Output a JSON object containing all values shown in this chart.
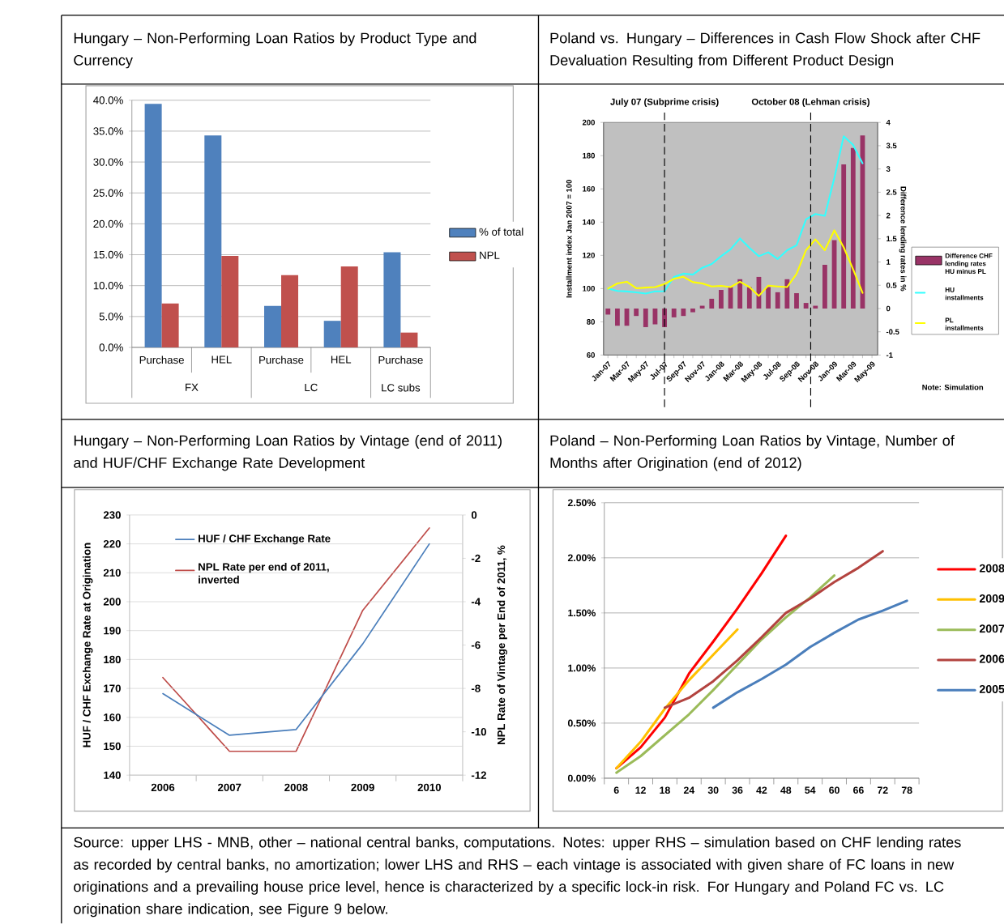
{
  "chart_data": [
    {
      "type": "bar",
      "title": "Hungary – Non-Performing Loan Ratios by Product Type and Currency",
      "categories": [
        "Purchase",
        "HEL",
        "Purchase",
        "HEL",
        "Purchase"
      ],
      "annotations": [
        "FX",
        "LC",
        "LC subs"
      ],
      "series": [
        {
          "name": "% of total",
          "color": "#4f81bd",
          "values": [
            39.4,
            34.3,
            6.7,
            4.3,
            15.4
          ]
        },
        {
          "name": "NPL",
          "color": "#c0504d",
          "values": [
            7.1,
            14.8,
            11.7,
            13.1,
            2.4
          ]
        }
      ],
      "ylim": [
        0,
        40
      ],
      "yticks": [
        {
          "value": 0,
          "label": "0.0%"
        },
        {
          "value": 5,
          "label": "5.0%"
        },
        {
          "value": 10,
          "label": "10.0%"
        },
        {
          "value": 15,
          "label": "15.0%"
        },
        {
          "value": 20,
          "label": "20.0%"
        },
        {
          "value": 25,
          "label": "25.0%"
        },
        {
          "value": 30,
          "label": "30.0%"
        },
        {
          "value": 35,
          "label": "35.0%"
        },
        {
          "value": 40,
          "label": "40.0%"
        }
      ],
      "grid": "y",
      "legend": "right"
    },
    {
      "type": "bar",
      "title": "Poland vs. Hungary – Differences in Cash Flow Shock after CHF Devaluation Resulting from Different Product Design",
      "x": [
        "2007-01",
        "2007-02",
        "2007-03",
        "2007-04",
        "2007-05",
        "2007-06",
        "2007-07",
        "2007-08",
        "2007-09",
        "2007-10",
        "2007-11",
        "2007-12",
        "2008-01",
        "2008-02",
        "2008-03",
        "2008-04",
        "2008-05",
        "2008-06",
        "2008-07",
        "2008-08",
        "2008-09",
        "2008-10",
        "2008-11",
        "2008-12",
        "2009-01",
        "2009-02",
        "2009-03",
        "2009-04"
      ],
      "series": [
        {
          "name": "Difference CHF lending rates HU minus PL",
          "type": "bar",
          "axis": "y2",
          "color": "#993366",
          "values": [
            -0.13,
            -0.37,
            -0.37,
            -0.16,
            -0.4,
            -0.34,
            -0.4,
            -0.19,
            -0.16,
            -0.08,
            0.06,
            0.21,
            0.4,
            0.46,
            0.63,
            0.46,
            0.68,
            0.46,
            0.35,
            0.63,
            0.33,
            0.12,
            0.06,
            0.94,
            1.47,
            3.1,
            3.45,
            3.72
          ]
        },
        {
          "name": "HU installments",
          "type": "line",
          "color": "#33ffff",
          "values": [
            100,
            98.6,
            98.3,
            97.7,
            97,
            98.3,
            98.5,
            107,
            109,
            108.4,
            112.5,
            114.8,
            119.5,
            123.6,
            130.2,
            124.5,
            119.5,
            121.8,
            117.8,
            123.1,
            126.1,
            141.7,
            144.9,
            143.8,
            166.5,
            191.7,
            186.4,
            175.4
          ]
        },
        {
          "name": "PL installments",
          "type": "line",
          "color": "#ffff00",
          "values": [
            100,
            103.1,
            104.1,
            100.2,
            100.6,
            100.9,
            102.7,
            105.9,
            107.1,
            103.9,
            103.1,
            101.3,
            101.6,
            100.9,
            104.1,
            100.9,
            95.6,
            101.8,
            101.3,
            100.9,
            108.9,
            123.1,
            129.6,
            123.1,
            135.1,
            124.8,
            111.6,
            97.4
          ]
        }
      ],
      "xlim": [
        "2006-12-17",
        "2009-05-19"
      ],
      "xticks": [
        {
          "value": "2007-01",
          "label": "Jan-07"
        },
        {
          "value": "2007-02",
          "label": null
        },
        {
          "value": "2007-03",
          "label": "Mar-07"
        },
        {
          "value": "2007-04",
          "label": null
        },
        {
          "value": "2007-05",
          "label": "May-07"
        },
        {
          "value": "2007-06",
          "label": null
        },
        {
          "value": "2007-07",
          "label": "Jul-07"
        },
        {
          "value": "2007-08",
          "label": null
        },
        {
          "value": "2007-09",
          "label": "Sep-07"
        },
        {
          "value": "2007-10",
          "label": null
        },
        {
          "value": "2007-11",
          "label": "Nov-07"
        },
        {
          "value": "2007-12",
          "label": null
        },
        {
          "value": "2008-01",
          "label": "Jan-08"
        },
        {
          "value": "2008-02",
          "label": null
        },
        {
          "value": "2008-03",
          "label": "Mar-08"
        },
        {
          "value": "2008-04",
          "label": null
        },
        {
          "value": "2008-05",
          "label": "May-08"
        },
        {
          "value": "2008-06",
          "label": null
        },
        {
          "value": "2008-07",
          "label": "Jul-08"
        },
        {
          "value": "2008-08",
          "label": null
        },
        {
          "value": "2008-09",
          "label": "Sep-08"
        },
        {
          "value": "2008-10",
          "label": null
        },
        {
          "value": "2008-11",
          "label": "Nov-08"
        },
        {
          "value": "2008-12",
          "label": null
        },
        {
          "value": "2009-01",
          "label": "Jan-09"
        },
        {
          "value": "2009-02",
          "label": null
        },
        {
          "value": "2009-03",
          "label": "Mar-09"
        },
        {
          "value": "2009-04",
          "label": null
        },
        {
          "value": "2009-05",
          "label": "May-09"
        }
      ],
      "ylim": [
        60,
        200
      ],
      "yticks": [
        60,
        80,
        100,
        120,
        140,
        160,
        180,
        200
      ],
      "y2lim": [
        -1,
        4
      ],
      "y2ticks": [
        -1,
        -0.5,
        0,
        0.5,
        1,
        1.5,
        2,
        2.5,
        3,
        3.5,
        4
      ],
      "ylabel": "Installment index Jan 2007 = 100",
      "y2label": "Difference lending rates in %",
      "ref_lines": [
        {
          "axis": "x",
          "value": "2007-07",
          "label": "July 07 (Subprime crisis)",
          "line_style": "dashed"
        },
        {
          "axis": "x",
          "value": "2008-10-16",
          "label": "October 08 (Lehman crisis)",
          "line_style": "dashed"
        }
      ],
      "annotations": [
        "Note: Simulation"
      ],
      "legend": "right"
    },
    {
      "type": "line",
      "title": "Hungary – Non-Performing Loan Ratios by Vintage (end of 2011) and HUF/CHF Exchange Rate Development",
      "categories": [
        "2006",
        "2007",
        "2008",
        "2009",
        "2010"
      ],
      "series": [
        {
          "name": "HUF / CHF Exchange Rate",
          "color": "#4a7ebb",
          "values": [
            168.2,
            153.8,
            155.8,
            185.4,
            220
          ]
        },
        {
          "name": "NPL Rate per end of 2011, inverted",
          "color": "#be4b48",
          "axis": "y2",
          "values": [
            -7.5,
            -10.9,
            -10.9,
            -4.4,
            -0.6
          ]
        }
      ],
      "ylim": [
        140,
        230
      ],
      "yticks": [
        140,
        150,
        160,
        170,
        180,
        190,
        200,
        210,
        220,
        230
      ],
      "y2lim": [
        -12,
        0
      ],
      "y2ticks": [
        -12,
        -10,
        -8,
        -6,
        -4,
        -2,
        0
      ],
      "ylabel": "HUF / CHF Exchange Rate at Origination",
      "y2label": "NPL Rate of Vintage per End of 2011, %",
      "grid": "y",
      "legend": "top left"
    },
    {
      "type": "line",
      "title": "Poland – Non-Performing Loan Ratios by Vintage, Number of Months after Origination (end of 2012)",
      "categories": [
        "6",
        "12",
        "18",
        "24",
        "30",
        "36",
        "42",
        "48",
        "54",
        "60",
        "66",
        "72",
        "78"
      ],
      "series": [
        {
          "name": "2008",
          "color": "#ff0000",
          "values": [
            0.09,
            0.28,
            0.55,
            0.95,
            1.24,
            1.54,
            1.86,
            2.2,
            null,
            null,
            null,
            null,
            null
          ]
        },
        {
          "name": "2009",
          "color": "#ffc000",
          "values": [
            0.09,
            0.33,
            0.63,
            0.89,
            1.12,
            1.35,
            null,
            null,
            null,
            null,
            null,
            null,
            null
          ]
        },
        {
          "name": "2007",
          "color": "#9bbb59",
          "values": [
            0.05,
            0.2,
            0.39,
            0.58,
            0.8,
            1.03,
            1.26,
            1.46,
            1.64,
            1.84,
            null,
            null,
            null
          ]
        },
        {
          "name": "2006",
          "color": "#b3433f",
          "values": [
            null,
            null,
            0.64,
            0.73,
            0.88,
            1.07,
            1.28,
            1.5,
            1.63,
            1.78,
            1.91,
            2.06,
            null
          ]
        },
        {
          "name": "2005",
          "color": "#4a7ebb",
          "values": [
            null,
            null,
            null,
            null,
            0.64,
            0.78,
            0.9,
            1.03,
            1.19,
            1.32,
            1.44,
            1.52,
            1.61
          ]
        }
      ],
      "ylim": [
        0,
        2.5
      ],
      "yticks": [
        {
          "value": 0,
          "label": "0.00%"
        },
        {
          "value": 0.5,
          "label": "0.50%"
        },
        {
          "value": 1,
          "label": "1.00%"
        },
        {
          "value": 1.5,
          "label": "1.50%"
        },
        {
          "value": 2,
          "label": "2.00%"
        },
        {
          "value": 2.5,
          "label": "2.50%"
        }
      ],
      "grid": "y",
      "legend": "right"
    },
    {
      "type": "other",
      "annotations": [
        "Source: upper LHS - MNB, other – national central banks, computations. Notes: upper RHS – simulation based on CHF lending rates as recorded by central banks, no amortization; lower LHS and RHS – each vintage is associated with given share of FC loans in new originations and a prevailing house price level, hence is characterized by a specific lock-in risk. For Hungary and Poland FC vs. LC origination share indication, see Figure 9 below."
      ]
    }
  ]
}
